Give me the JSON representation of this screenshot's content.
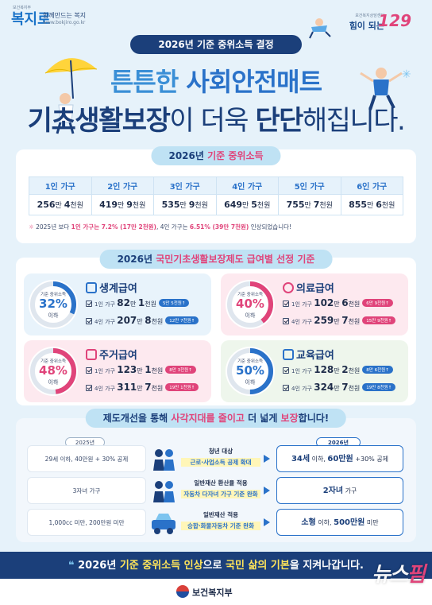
{
  "header": {
    "left_logo_small": "보건복지부",
    "left_logo_mark": "복지로",
    "left_logo_tag": "함께만드는 복지",
    "left_logo_url": "www.bokjiro.go.kr",
    "right_logo_small": "보건복지상담센터",
    "right_logo_text": "힘이 되는",
    "right_logo_num": "129",
    "pill": "2026년 기준 중위소득 결정",
    "headline1_a": "튼튼한 ",
    "headline1_b": "사회안전매트",
    "headline2_a": "기초생활보장",
    "headline2_b": "이 더욱 ",
    "headline2_c": "단단",
    "headline2_d": "해집니다."
  },
  "median_income": {
    "title_a": "2026년 ",
    "title_b": "기준 중위소득",
    "headers": [
      "1인 가구",
      "2인 가구",
      "3인 가구",
      "4인 가구",
      "5인 가구",
      "6인 가구"
    ],
    "values": [
      {
        "a": "256",
        "au": "만 ",
        "b": "4",
        "bu": "천원"
      },
      {
        "a": "419",
        "au": "만 ",
        "b": "9",
        "bu": "천원"
      },
      {
        "a": "535",
        "au": "만 ",
        "b": "9",
        "bu": "천원"
      },
      {
        "a": "649",
        "au": "만 ",
        "b": "5",
        "bu": "천원"
      },
      {
        "a": "755",
        "au": "만 ",
        "b": "7",
        "bu": "천원"
      },
      {
        "a": "855",
        "au": "만 ",
        "b": "6",
        "bu": "천원"
      }
    ],
    "note_a": "2025년 보다 ",
    "note_b": "1인 가구는 7.2% (17만 2천원)",
    "note_c": ", 4인 가구는 ",
    "note_d": "6.51% (39만 7천원)",
    "note_e": " 인상되었습니다!"
  },
  "criteria": {
    "title_a": "2026년 ",
    "title_b": "국민기초생활보장제도 급여별 선정 기준",
    "gauge_label": "기준 중위소득",
    "gauge_under": "이하",
    "cards": [
      {
        "name": "생계급여",
        "pct": "32%",
        "pct_value": 32,
        "color": "#2a72c9",
        "l1_pre": "1인 가구 ",
        "l1_a": "82",
        "l1_au": "만 ",
        "l1_b": "1",
        "l1_bu": "천원",
        "l1_tag": "5만 5천원↑",
        "l2_pre": "4인 가구 ",
        "l2_a": "207",
        "l2_au": "만 ",
        "l2_b": "8",
        "l2_bu": "천원",
        "l2_tag": "12만 7천원↑"
      },
      {
        "name": "의료급여",
        "pct": "40%",
        "pct_value": 40,
        "color": "#e0447a",
        "l1_pre": "1인 가구 ",
        "l1_a": "102",
        "l1_au": "만 ",
        "l1_b": "6",
        "l1_bu": "천원",
        "l1_tag": "6만 9천원↑",
        "l2_pre": "4인 가구 ",
        "l2_a": "259",
        "l2_au": "만 ",
        "l2_b": "7",
        "l2_bu": "천원",
        "l2_tag": "15만 9천원↑"
      },
      {
        "name": "주거급여",
        "pct": "48%",
        "pct_value": 48,
        "color": "#e0447a",
        "l1_pre": "1인 가구 ",
        "l1_a": "123",
        "l1_au": "만 ",
        "l1_b": "1",
        "l1_bu": "천원",
        "l1_tag": "8만 3천원↑",
        "l2_pre": "4인 가구 ",
        "l2_a": "311",
        "l2_au": "만 ",
        "l2_b": "7",
        "l2_bu": "천원",
        "l2_tag": "19만 1천원↑"
      },
      {
        "name": "교육급여",
        "pct": "50%",
        "pct_value": 50,
        "color": "#2a72c9",
        "l1_pre": "1인 가구 ",
        "l1_a": "128",
        "l1_au": "만 ",
        "l1_b": "2",
        "l1_bu": "천원",
        "l1_tag": "8만 6천원↑",
        "l2_pre": "4인 가구 ",
        "l2_a": "324",
        "l2_au": "만 ",
        "l2_b": "7",
        "l2_bu": "천원",
        "l2_tag": "19만 8천원↑"
      }
    ]
  },
  "blindspot": {
    "title_a": "제도개선을 통해 ",
    "title_b": "사각지대를 줄이고",
    "title_c": " 더 넓게 ",
    "title_d": "보장",
    "title_e": "합니다!",
    "year_old": "2025년",
    "year_new": "2026년",
    "rows": [
      {
        "old": "29세 이하, 40만원 + 30% 공제",
        "mid1": "청년 대상",
        "mid2": "근로·사업소득 공제 확대",
        "new_a": "34세",
        "new_b": " 이하, ",
        "new_c": "60만원",
        "new_d": " +30% 공제"
      },
      {
        "old": "3자녀 가구",
        "mid1": "일반재산 환산율 적용",
        "mid2": "자동차 다자녀 가구 기준 완화",
        "new_a": "2자녀",
        "new_b": " 가구",
        "new_c": "",
        "new_d": ""
      },
      {
        "old": "1,000cc 미만, 200만원 미만",
        "mid1": "일반재산 적용",
        "mid2": "승합·화물자동차 기준 완화",
        "new_a": "소형",
        "new_b": " 이하, ",
        "new_c": "500만원",
        "new_d": " 미만"
      }
    ]
  },
  "footer": {
    "slogan_a": "2026년 ",
    "slogan_b": "기준 중위소득 인상",
    "slogan_c": "으로 ",
    "slogan_d": "국민 삶의 기본",
    "slogan_e": "을 지켜나갑니다.",
    "ministry": "보건복지부",
    "watermark_a": "뉴스",
    "watermark_b": "핌"
  }
}
